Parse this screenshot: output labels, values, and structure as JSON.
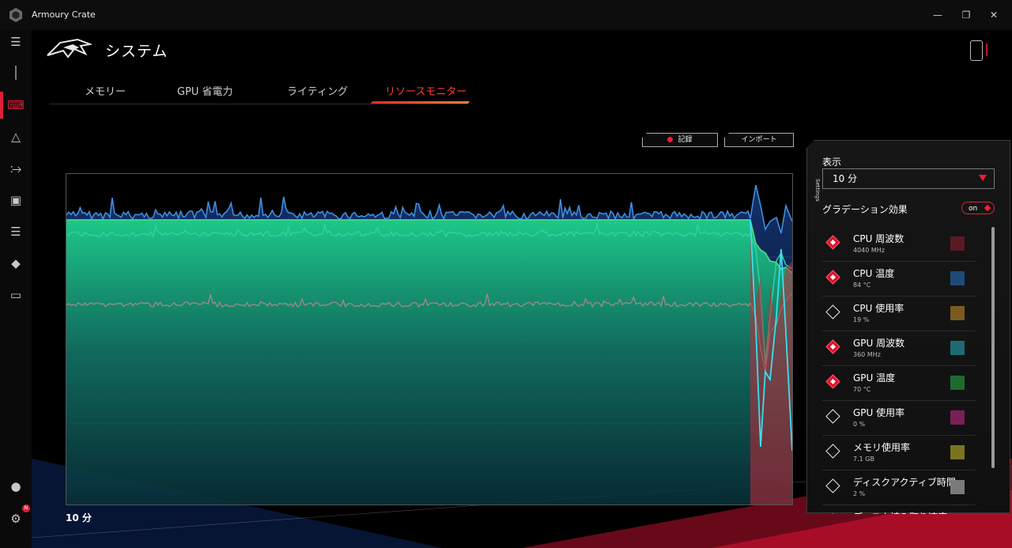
{
  "window": {
    "title": "Armoury Crate"
  },
  "header": {
    "title": "システム"
  },
  "tabs": [
    {
      "label": "メモリー"
    },
    {
      "label": "GPU 省電力"
    },
    {
      "label": "ライティング"
    },
    {
      "label": "リソースモニター",
      "active": true
    }
  ],
  "toolbar": {
    "record_label": "記録",
    "import_label": "インポート"
  },
  "chart": {
    "time_label": "10 分"
  },
  "settings": {
    "tab_label": "Settings",
    "display_label": "表示",
    "time_range": "10 分",
    "gradient_label": "グラデーション効果",
    "gradient_toggle": "on",
    "metrics": [
      {
        "name": "CPU 周波数",
        "value": "4040 MHz",
        "enabled": true,
        "color": "#5a1a24"
      },
      {
        "name": "CPU 温度",
        "value": "84 °C",
        "enabled": true,
        "color": "#1e4a78"
      },
      {
        "name": "CPU 使用率",
        "value": "19 %",
        "enabled": false,
        "color": "#7a5a1e"
      },
      {
        "name": "GPU 周波数",
        "value": "360 MHz",
        "enabled": true,
        "color": "#1e6a74"
      },
      {
        "name": "GPU 温度",
        "value": "70 °C",
        "enabled": true,
        "color": "#1e6a2e"
      },
      {
        "name": "GPU 使用率",
        "value": "0 %",
        "enabled": false,
        "color": "#7a1e5a"
      },
      {
        "name": "メモリ使用率",
        "value": "7.1 GB",
        "enabled": false,
        "color": "#7a741e"
      },
      {
        "name": "ディスクアクティブ時間",
        "value": "2 %",
        "enabled": false,
        "color": "#7a7a7a"
      },
      {
        "name": "ディスク読み取り速度",
        "value": "",
        "enabled": false,
        "color": "#444444"
      }
    ]
  },
  "icons": {
    "app": "armoury-crate-logo-icon",
    "brand": "rog-logo-icon",
    "sidebar": [
      "menu-icon",
      "info-icon",
      "keyboard-icon",
      "aura-icon",
      "speed-icon",
      "gamepad-icon",
      "equalizer-icon",
      "tag-icon",
      "display-icon",
      "user-icon",
      "settings-icon"
    ]
  },
  "chart_data": {
    "type": "area",
    "x_range_label": "10 分",
    "series": [
      {
        "color": "#3d8fe0",
        "profile": "top-noisy"
      },
      {
        "color": "#4fe08a",
        "profile": "upper-flat"
      },
      {
        "color": "#2fd0a0",
        "profile": "mid-noisy"
      },
      {
        "color": "#9a8a88",
        "profile": "low-noisy"
      },
      {
        "color": "#c42a3a",
        "profile": "spike-end"
      },
      {
        "color": "#38e0f0",
        "profile": "drop-end"
      }
    ]
  }
}
